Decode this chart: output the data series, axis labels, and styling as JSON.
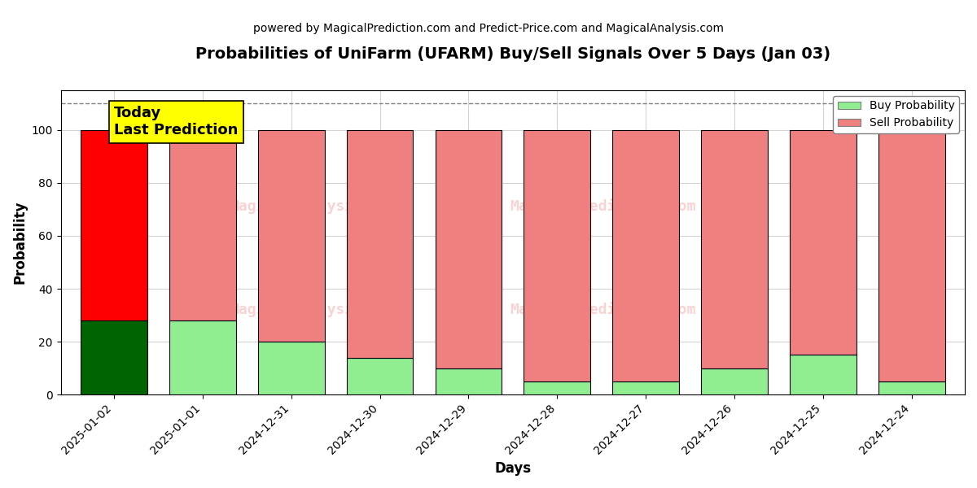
{
  "title": "Probabilities of UniFarm (UFARM) Buy/Sell Signals Over 5 Days (Jan 03)",
  "subtitle": "powered by MagicalPrediction.com and Predict-Price.com and MagicalAnalysis.com",
  "xlabel": "Days",
  "ylabel": "Probability",
  "categories": [
    "2025-01-02",
    "2025-01-01",
    "2024-12-31",
    "2024-12-30",
    "2024-12-29",
    "2024-12-28",
    "2024-12-27",
    "2024-12-26",
    "2024-12-25",
    "2024-12-24"
  ],
  "buy_values": [
    28,
    28,
    20,
    14,
    10,
    5,
    5,
    10,
    15,
    5
  ],
  "sell_values": [
    72,
    72,
    80,
    86,
    90,
    95,
    95,
    90,
    85,
    95
  ],
  "today_buy_color": "#006400",
  "today_sell_color": "#FF0000",
  "buy_color": "#90EE90",
  "sell_color": "#F08080",
  "bar_edge_color": "#000000",
  "today_label": "Today\nLast Prediction",
  "today_label_bg": "#FFFF00",
  "legend_buy_label": "Buy Probability",
  "legend_sell_label": "Sell Probability",
  "dashed_line_y": 110,
  "ylim": [
    0,
    115
  ],
  "yticks": [
    0,
    20,
    40,
    60,
    80,
    100
  ],
  "watermark_color": "#F08080",
  "watermark_alpha": 0.35,
  "figsize": [
    12,
    6
  ],
  "dpi": 100
}
